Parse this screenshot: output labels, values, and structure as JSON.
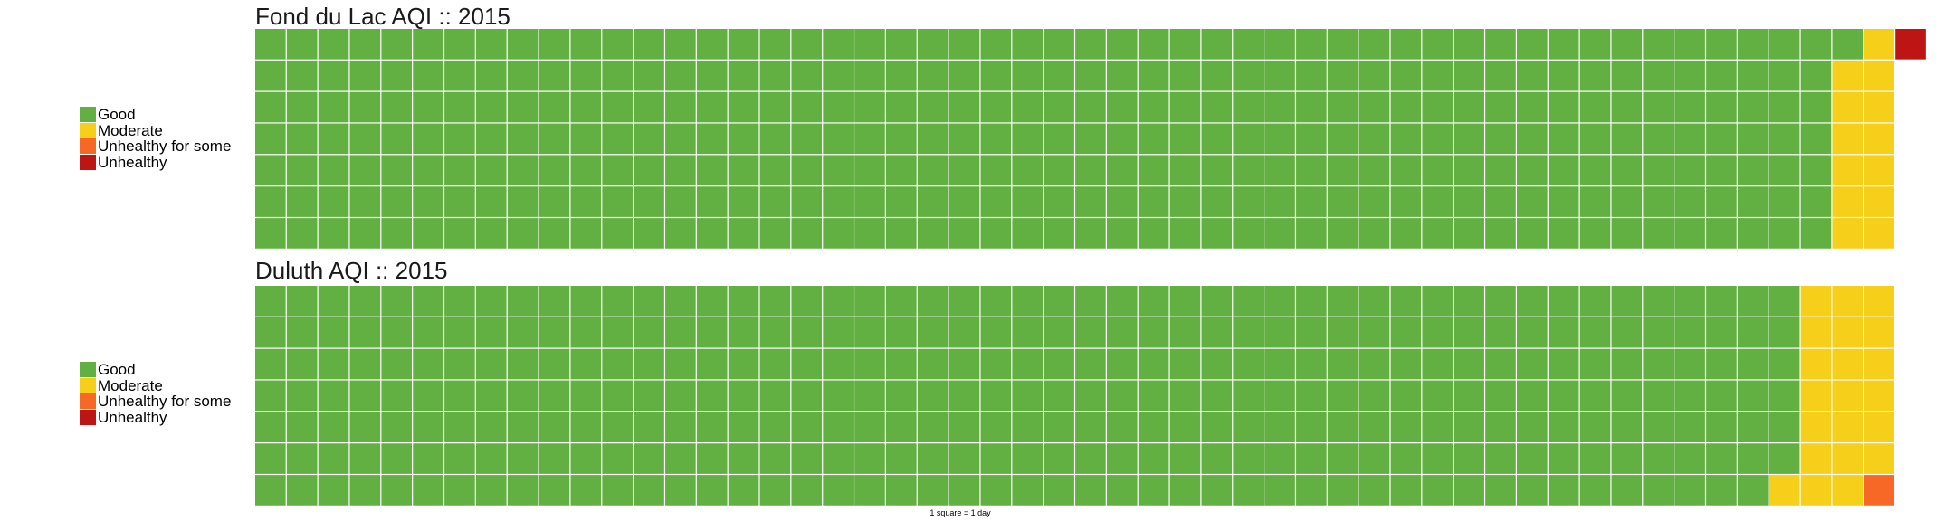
{
  "colors": {
    "Good": "#62b041",
    "Moderate": "#f5cf1a",
    "Unhealthy for some": "#f76827",
    "Unhealthy": "#bd1414"
  },
  "footnote": "1 square = 1 day",
  "chart_data": [
    {
      "type": "waffle",
      "title": "Fond du Lac AQI :: 2015",
      "rows": 7,
      "columns": 53,
      "legend": [
        "Good",
        "Moderate",
        "Unhealthy for some",
        "Unhealthy"
      ],
      "categories": [
        "Good",
        "Moderate",
        "Unhealthy for some",
        "Unhealthy"
      ],
      "values": [
        351,
        13,
        0,
        1
      ]
    },
    {
      "type": "waffle",
      "title": "Duluth AQI :: 2015",
      "rows": 7,
      "columns": 53,
      "legend": [
        "Good",
        "Moderate",
        "Unhealthy for some",
        "Unhealthy"
      ],
      "categories": [
        "Good",
        "Moderate",
        "Unhealthy for some",
        "Unhealthy"
      ],
      "values": [
        342,
        21,
        1,
        0
      ]
    }
  ]
}
